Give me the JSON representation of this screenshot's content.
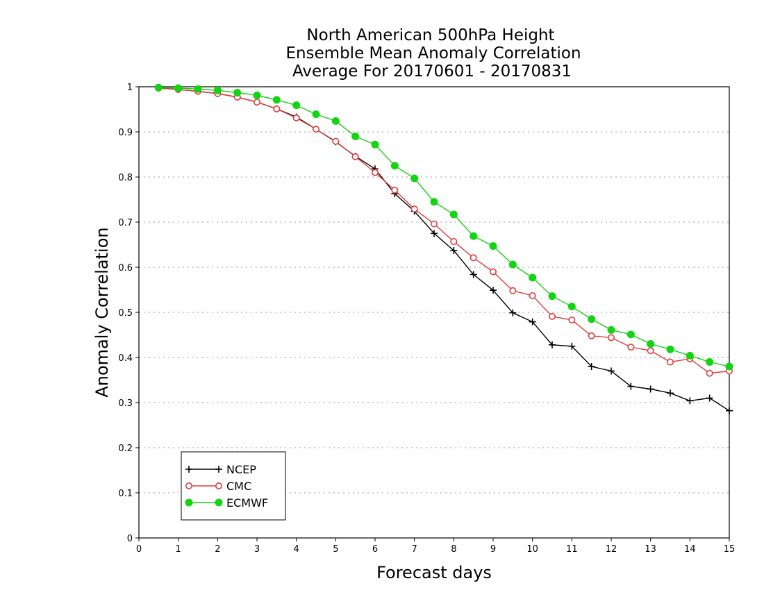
{
  "chart_data": {
    "type": "line",
    "title": [
      "North American 500hPa Height",
      "Ensemble Mean Anomaly Correlation",
      "Average For 20170601 - 20170831"
    ],
    "xlabel": "Forecast days",
    "ylabel": "Anomaly Correlation",
    "xlim": [
      0,
      15
    ],
    "ylim": [
      0,
      1
    ],
    "xticks": [
      "0",
      "1",
      "2",
      "3",
      "4",
      "5",
      "6",
      "7",
      "8",
      "9",
      "10",
      "11",
      "12",
      "13",
      "14",
      "15"
    ],
    "yticks": [
      "0",
      "0.1",
      "0.2",
      "0.3",
      "0.4",
      "0.5",
      "0.6",
      "0.7",
      "0.8",
      "0.9",
      "1"
    ],
    "grid": true,
    "legend_position": "bottom-left",
    "x": [
      0.5,
      1,
      1.5,
      2,
      2.5,
      3,
      3.5,
      4,
      4.5,
      5,
      5.5,
      6,
      6.5,
      7,
      7.5,
      8,
      8.5,
      9,
      9.5,
      10,
      10.5,
      11,
      11.5,
      12,
      12.5,
      13,
      13.5,
      14,
      14.5,
      15
    ],
    "series": [
      {
        "name": "NCEP",
        "color": "#000000",
        "marker": "plus",
        "values": [
          0.997,
          0.994,
          0.99,
          0.985,
          0.977,
          0.966,
          0.951,
          0.933,
          0.906,
          0.878,
          0.846,
          0.818,
          0.763,
          0.724,
          0.675,
          0.637,
          0.584,
          0.549,
          0.499,
          0.479,
          0.428,
          0.425,
          0.38,
          0.37,
          0.336,
          0.33,
          0.321,
          0.304,
          0.31,
          0.282
        ]
      },
      {
        "name": "CMC",
        "color": "#e03c3c",
        "marker": "open-circle",
        "values": [
          0.997,
          0.994,
          0.99,
          0.985,
          0.977,
          0.966,
          0.951,
          0.931,
          0.906,
          0.879,
          0.845,
          0.81,
          0.771,
          0.729,
          0.696,
          0.657,
          0.621,
          0.59,
          0.548,
          0.537,
          0.491,
          0.483,
          0.448,
          0.444,
          0.423,
          0.415,
          0.39,
          0.397,
          0.365,
          0.37
        ]
      },
      {
        "name": "ECMWF",
        "color": "#12d412",
        "marker": "filled-circle",
        "values": [
          0.998,
          0.997,
          0.995,
          0.992,
          0.987,
          0.981,
          0.971,
          0.959,
          0.939,
          0.924,
          0.89,
          0.872,
          0.825,
          0.797,
          0.745,
          0.717,
          0.669,
          0.647,
          0.606,
          0.577,
          0.536,
          0.513,
          0.485,
          0.461,
          0.451,
          0.43,
          0.418,
          0.404,
          0.39,
          0.38
        ]
      }
    ]
  }
}
